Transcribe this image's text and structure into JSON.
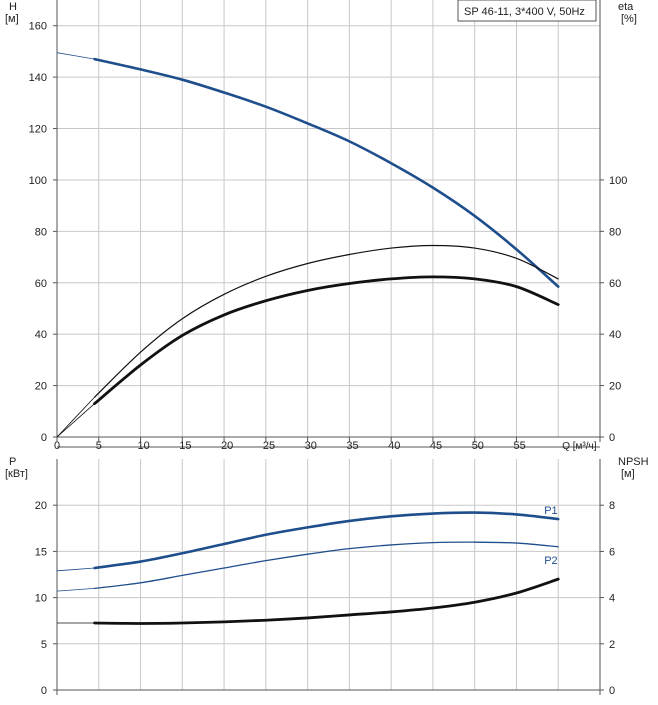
{
  "colors": {
    "blue": "#1f4e8c",
    "black": "#111111",
    "grid": "#c8c8c8",
    "frame": "#555555"
  },
  "chart_data": [
    {
      "type": "line",
      "title": "SP 46-11, 3*400 V, 50Hz",
      "xlabel": "Q [м³/ч]",
      "ylabel_left": "H\n[м]",
      "ylabel_right": "eta\n[%]",
      "xlim": [
        0,
        65
      ],
      "ylim_left": [
        0,
        170
      ],
      "ylim_right": [
        0,
        170
      ],
      "x_ticks": [
        0,
        5,
        10,
        15,
        20,
        25,
        30,
        35,
        40,
        45,
        50,
        55
      ],
      "y_ticks_left": [
        0,
        20,
        40,
        60,
        80,
        100,
        120,
        140,
        160
      ],
      "y_ticks_right": [
        0,
        20,
        40,
        60,
        80,
        100
      ],
      "grid": true,
      "series": [
        {
          "axis": "left",
          "color": "blue",
          "width": 2.6,
          "x": [
            4.5,
            10,
            15,
            20,
            25,
            30,
            35,
            40,
            45,
            50,
            55,
            60
          ],
          "y": [
            147,
            143,
            139,
            134,
            128.5,
            122,
            115,
            106.5,
            97,
            86,
            73,
            58.5
          ],
          "ext_x": [
            0,
            4.5
          ],
          "ext_y": [
            149.5,
            147
          ]
        },
        {
          "axis": "right",
          "color": "black",
          "width": 1.2,
          "x": [
            4.5,
            10,
            15,
            20,
            25,
            30,
            35,
            40,
            45,
            50,
            55,
            60
          ],
          "y": [
            15.5,
            33,
            46,
            55.5,
            62.5,
            67.5,
            71,
            73.5,
            74.5,
            73.5,
            69.5,
            61.5
          ],
          "ext_x": [
            0,
            4.5
          ],
          "ext_y": [
            0,
            15.5
          ]
        },
        {
          "axis": "right",
          "color": "black",
          "width": 2.8,
          "x": [
            4.5,
            10,
            15,
            20,
            25,
            30,
            35,
            40,
            45,
            50,
            55,
            60
          ],
          "y": [
            13,
            28,
            39.5,
            47.5,
            53,
            57,
            59.7,
            61.5,
            62.3,
            61.5,
            58.5,
            51.5
          ],
          "ext_x": [
            0,
            4.5
          ],
          "ext_y": [
            0,
            13
          ]
        }
      ]
    },
    {
      "type": "line",
      "ylabel_left": "P\n[кВт]",
      "ylabel_right": "NPSH\n[м]",
      "xlim": [
        0,
        65
      ],
      "ylim_left": [
        0,
        25
      ],
      "ylim_right": [
        0,
        10
      ],
      "y_ticks_left": [
        0,
        5,
        10,
        15,
        20
      ],
      "y_ticks_right": [
        0,
        2,
        4,
        6,
        8
      ],
      "grid": true,
      "series": [
        {
          "name": "P1",
          "axis": "left",
          "color": "blue",
          "width": 2.6,
          "x": [
            4.5,
            10,
            15,
            20,
            25,
            30,
            35,
            40,
            45,
            50,
            55,
            60
          ],
          "y": [
            13.2,
            13.9,
            14.8,
            15.8,
            16.8,
            17.6,
            18.3,
            18.8,
            19.1,
            19.2,
            19.0,
            18.5
          ],
          "ext_x": [
            0,
            4.5
          ],
          "ext_y": [
            12.9,
            13.2
          ]
        },
        {
          "name": "P2",
          "axis": "left",
          "color": "blue",
          "width": 1.3,
          "x": [
            4.5,
            10,
            15,
            20,
            25,
            30,
            35,
            40,
            45,
            50,
            55,
            60
          ],
          "y": [
            11.0,
            11.6,
            12.4,
            13.2,
            14.0,
            14.7,
            15.3,
            15.7,
            15.95,
            16.0,
            15.9,
            15.5
          ],
          "ext_x": [
            0,
            4.5
          ],
          "ext_y": [
            10.7,
            11.0
          ]
        },
        {
          "axis": "right",
          "color": "black",
          "width": 2.8,
          "x": [
            4.5,
            10,
            15,
            20,
            25,
            30,
            35,
            40,
            45,
            50,
            55,
            60
          ],
          "y": [
            2.9,
            2.88,
            2.9,
            2.95,
            3.02,
            3.12,
            3.25,
            3.38,
            3.55,
            3.8,
            4.2,
            4.8
          ],
          "ext_x": [
            0,
            4.5
          ],
          "ext_y": [
            2.9,
            2.9
          ]
        }
      ]
    }
  ]
}
